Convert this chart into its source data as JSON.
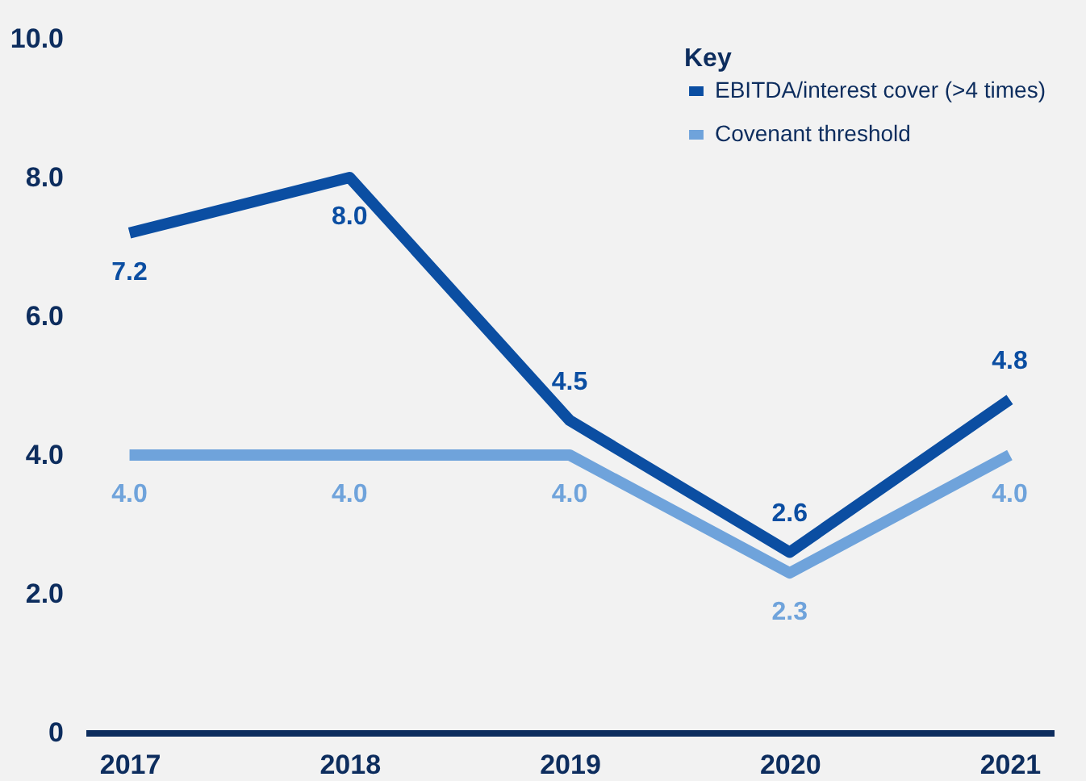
{
  "chart_data": {
    "type": "line",
    "categories": [
      "2017",
      "2018",
      "2019",
      "2020",
      "2021"
    ],
    "series": [
      {
        "name": "EBITDA/interest cover (>4 times)",
        "color": "#0b4ea2",
        "values": [
          7.2,
          8.0,
          4.5,
          2.6,
          4.8
        ],
        "value_labels": [
          "7.2",
          "8.0",
          "4.5",
          "2.6",
          "4.8"
        ]
      },
      {
        "name": "Covenant threshold",
        "color": "#6fa3db",
        "values": [
          4.0,
          4.0,
          4.0,
          2.3,
          4.0
        ],
        "value_labels": [
          "4.0",
          "4.0",
          "4.0",
          "2.3",
          "4.0"
        ]
      }
    ],
    "legend_title": "Key",
    "legend": "top right",
    "ylim": [
      0,
      10
    ],
    "yticks": [
      0,
      {
        "value": 2,
        "label": "2.0"
      },
      {
        "value": 4,
        "label": "4.0"
      },
      {
        "value": 6,
        "label": "6.0"
      },
      {
        "value": 8,
        "label": "8.0"
      },
      {
        "value": 10,
        "label": "10.0"
      }
    ],
    "grid": false,
    "marker": "none",
    "line_style": "solid"
  }
}
